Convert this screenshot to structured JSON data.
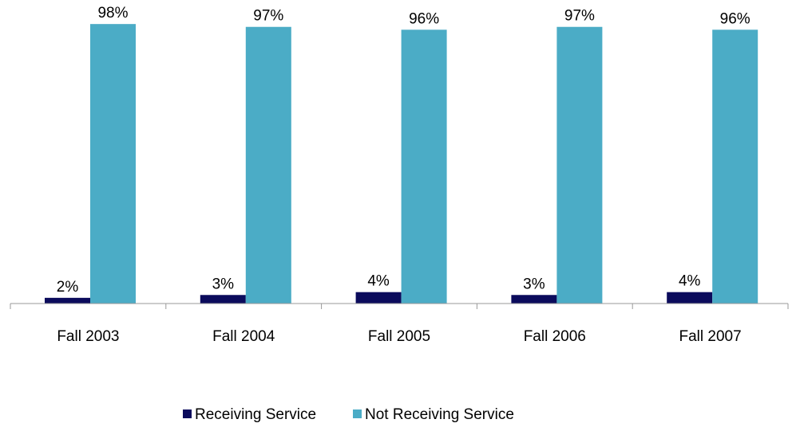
{
  "chart_data": {
    "type": "bar",
    "categories": [
      "Fall 2003",
      "Fall 2004",
      "Fall 2005",
      "Fall 2006",
      "Fall 2007"
    ],
    "series": [
      {
        "name": "Receiving Service",
        "color": "#0b0b5c",
        "values": [
          2,
          3,
          4,
          3,
          4
        ],
        "labels": [
          "2%",
          "3%",
          "4%",
          "3%",
          "4%"
        ]
      },
      {
        "name": "Not Receiving Service",
        "color": "#4bacc6",
        "values": [
          98,
          97,
          96,
          97,
          96
        ],
        "labels": [
          "98%",
          "97%",
          "96%",
          "97%",
          "96%"
        ]
      }
    ],
    "ylim": [
      0,
      100
    ],
    "grid": false,
    "legend": "bottom",
    "title": "",
    "xlabel": "",
    "ylabel": ""
  }
}
